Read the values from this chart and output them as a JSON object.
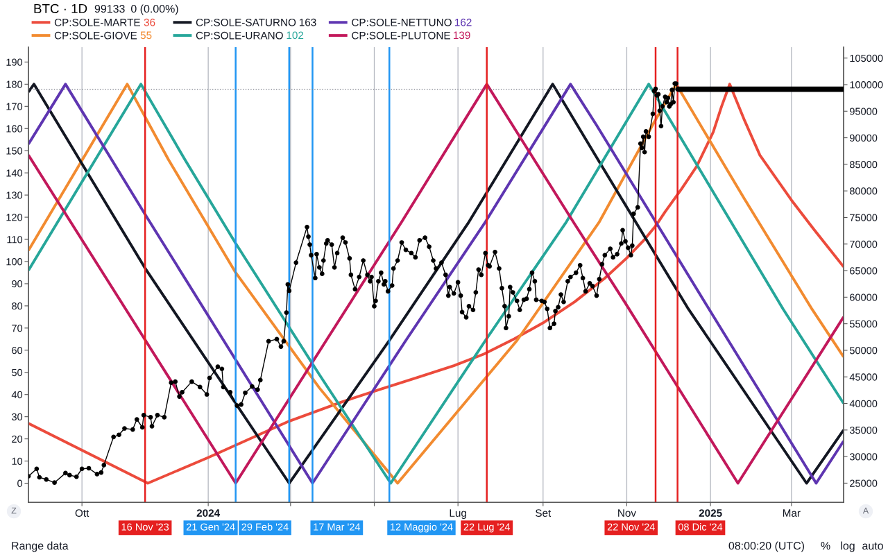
{
  "chart_data": {
    "type": "line",
    "legend": "top left",
    "grid": "x",
    "xlim": [
      "2023-08-23",
      "2025-04-08"
    ],
    "xticks": [
      {
        "value": "2023-10-01",
        "label": "Ott"
      },
      {
        "value": "2024-01-01",
        "label": "2024"
      },
      {
        "value": "2024-03-01",
        "label": null
      },
      {
        "value": "2024-05-01",
        "label": null
      },
      {
        "value": "2024-07-01",
        "label": "Lug"
      },
      {
        "value": "2024-09-01",
        "label": "Set"
      },
      {
        "value": "2024-11-01",
        "label": "Nov"
      },
      {
        "value": "2025-01-01",
        "label": "2025"
      },
      {
        "value": "2025-03-01",
        "label": "Mar"
      }
    ],
    "ylim": [
      -8.6,
      196.7
    ],
    "yticks": [
      0,
      10,
      20,
      30,
      40,
      50,
      60,
      70,
      80,
      90,
      100,
      110,
      120,
      130,
      140,
      150,
      160,
      170,
      180,
      190
    ],
    "y2lim": [
      21400,
      107050
    ],
    "y2ticks": [
      25000,
      30000,
      35000,
      40000,
      45000,
      50000,
      55000,
      60000,
      65000,
      70000,
      75000,
      80000,
      85000,
      90000,
      95000,
      100000,
      105000
    ],
    "series": [
      {
        "name": "CP:SOLE-MARTE",
        "color": "#ec4b3c",
        "x": [
          "2023-08-23",
          "2023-11-18",
          "2024-01-01",
          "2024-02-29",
          "2024-04-07",
          "2024-05-05",
          "2024-06-01",
          "2024-06-28",
          "2024-07-20",
          "2024-08-11",
          "2024-09-02",
          "2024-09-24",
          "2024-10-16",
          "2024-11-01",
          "2024-11-14",
          "2024-11-22",
          "2024-11-29",
          "2024-12-11",
          "2024-12-22",
          "2025-01-03",
          "2025-01-09",
          "2025-01-15",
          "2025-01-26",
          "2025-02-06",
          "2025-03-01",
          "2025-03-17",
          "2025-04-08"
        ],
        "values": [
          27,
          0,
          11.6,
          28,
          36.6,
          42.3,
          47.6,
          53,
          58.3,
          65.1,
          72.7,
          81.8,
          92.5,
          101.6,
          110,
          116,
          122.5,
          132.8,
          143,
          158.4,
          169.8,
          180,
          163.4,
          148,
          127.7,
          114.8,
          97.6
        ]
      },
      {
        "name": "CP:SOLE-GIOVE",
        "color": "#f28b30",
        "x": [
          "2023-08-23",
          "2023-11-03",
          "2023-12-03",
          "2024-01-21",
          "2024-03-22",
          "2024-05-18",
          "2024-08-13",
          "2024-10-12",
          "2024-11-21",
          "2024-12-07",
          "2025-01-25",
          "2025-03-16",
          "2025-04-08"
        ],
        "values": [
          105,
          180,
          146,
          95,
          43,
          0,
          64.4,
          117.9,
          162.9,
          180,
          129,
          78.5,
          57
        ]
      },
      {
        "name": "CP:SOLE-SATURNO",
        "color": "#131722",
        "x": [
          "2023-08-23",
          "2023-08-27",
          "2023-11-16",
          "2024-02-29",
          "2024-05-12",
          "2024-07-09",
          "2024-09-08",
          "2024-10-10",
          "2024-12-16",
          "2025-03-12",
          "2025-04-08"
        ],
        "values": [
          176.5,
          180,
          97,
          0,
          64.4,
          117.9,
          180,
          147,
          78.5,
          0,
          24
        ]
      },
      {
        "name": "CP:SOLE-URANO",
        "color": "#26a69a",
        "x": [
          "2023-08-23",
          "2023-11-13",
          "2023-12-15",
          "2024-01-21",
          "2024-03-22",
          "2024-05-13",
          "2024-07-21",
          "2024-09-18",
          "2024-11-17",
          "2025-02-23",
          "2025-04-08"
        ],
        "values": [
          96,
          180,
          146,
          108.2,
          49,
          0,
          64.4,
          117.9,
          180,
          78.5,
          36
        ]
      },
      {
        "name": "CP:SOLE-NETTUNO",
        "color": "#5e35b1",
        "x": [
          "2023-08-23",
          "2023-09-19",
          "2023-11-16",
          "2024-03-17",
          "2024-05-24",
          "2024-07-21",
          "2024-09-21",
          "2024-10-10",
          "2024-12-31",
          "2025-03-19",
          "2025-04-08"
        ],
        "values": [
          153,
          180,
          121.3,
          0,
          64.4,
          117.9,
          180,
          161.5,
          78.5,
          0,
          19
        ]
      },
      {
        "name": "CP:SOLE-PLUTONE",
        "color": "#c2185b",
        "x": [
          "2023-08-23",
          "2024-01-21",
          "2024-03-27",
          "2024-05-21",
          "2024-07-22",
          "2024-09-23",
          "2024-10-30",
          "2025-01-21",
          "2025-04-08"
        ],
        "values": [
          148,
          0,
          64.4,
          117.9,
          180,
          117.9,
          82.2,
          0,
          75
        ]
      },
      {
        "name": "BTC · 1D",
        "color": "#000000",
        "axis": "y2",
        "marker": "circle",
        "x": [
          "2023-08-23",
          "2023-08-29",
          "2023-08-31",
          "2023-09-05",
          "2023-09-11",
          "2023-09-19",
          "2023-09-22",
          "2023-09-27",
          "2023-10-01",
          "2023-10-06",
          "2023-10-12",
          "2023-10-15",
          "2023-10-17",
          "2023-10-24",
          "2023-10-28",
          "2023-11-01",
          "2023-11-07",
          "2023-11-10",
          "2023-11-14",
          "2023-11-15",
          "2023-11-20",
          "2023-11-21",
          "2023-11-25",
          "2023-11-30",
          "2023-12-05",
          "2023-12-08",
          "2023-12-11",
          "2023-12-13",
          "2023-12-20",
          "2023-12-26",
          "2023-12-31",
          "2024-01-02",
          "2024-01-08",
          "2024-01-11",
          "2024-01-12",
          "2024-01-17",
          "2024-01-22",
          "2024-01-25",
          "2024-01-28",
          "2024-02-02",
          "2024-02-06",
          "2024-02-08",
          "2024-02-14",
          "2024-02-20",
          "2024-02-23",
          "2024-02-25",
          "2024-02-27",
          "2024-02-28",
          "2024-02-29",
          "2024-03-05",
          "2024-03-13",
          "2024-03-14",
          "2024-03-15",
          "2024-03-16",
          "2024-03-19",
          "2024-03-20",
          "2024-03-22",
          "2024-03-24",
          "2024-03-25",
          "2024-03-27",
          "2024-03-28",
          "2024-03-31",
          "2024-04-02",
          "2024-04-04",
          "2024-04-08",
          "2024-04-10",
          "2024-04-13",
          "2024-04-14",
          "2024-04-17",
          "2024-04-20",
          "2024-04-23",
          "2024-04-26",
          "2024-04-28",
          "2024-04-29",
          "2024-05-01",
          "2024-05-02",
          "2024-05-04",
          "2024-05-06",
          "2024-05-08",
          "2024-05-09",
          "2024-05-11",
          "2024-05-14",
          "2024-05-15",
          "2024-05-18",
          "2024-05-21",
          "2024-05-24",
          "2024-05-28",
          "2024-05-31",
          "2024-06-03",
          "2024-06-07",
          "2024-06-10",
          "2024-06-13",
          "2024-06-15",
          "2024-06-19",
          "2024-06-22",
          "2024-06-24",
          "2024-06-25",
          "2024-06-28",
          "2024-07-01",
          "2024-07-03",
          "2024-07-04",
          "2024-07-07",
          "2024-07-09",
          "2024-07-12",
          "2024-07-14",
          "2024-07-16",
          "2024-07-18",
          "2024-07-21",
          "2024-07-23",
          "2024-07-24",
          "2024-07-28",
          "2024-07-31",
          "2024-08-02",
          "2024-08-04",
          "2024-08-05",
          "2024-08-07",
          "2024-08-08",
          "2024-08-10",
          "2024-08-13",
          "2024-08-15",
          "2024-08-18",
          "2024-08-20",
          "2024-08-22",
          "2024-08-24",
          "2024-08-26",
          "2024-08-27",
          "2024-08-31",
          "2024-09-02",
          "2024-09-04",
          "2024-09-06",
          "2024-09-09",
          "2024-09-10",
          "2024-09-12",
          "2024-09-14",
          "2024-09-16",
          "2024-09-19",
          "2024-09-21",
          "2024-09-25",
          "2024-09-28",
          "2024-09-30",
          "2024-10-02",
          "2024-10-05",
          "2024-10-07",
          "2024-10-10",
          "2024-10-12",
          "2024-10-14",
          "2024-10-16",
          "2024-10-20",
          "2024-10-22",
          "2024-10-25",
          "2024-10-28",
          "2024-10-29",
          "2024-10-31",
          "2024-11-02",
          "2024-11-04",
          "2024-11-05",
          "2024-11-06",
          "2024-11-09",
          "2024-11-11",
          "2024-11-12",
          "2024-11-13",
          "2024-11-14",
          "2024-11-15",
          "2024-11-17",
          "2024-11-20",
          "2024-11-21",
          "2024-11-22",
          "2024-11-23",
          "2024-11-24",
          "2024-11-25",
          "2024-11-26",
          "2024-11-27",
          "2024-11-29",
          "2024-11-30",
          "2024-12-01",
          "2024-12-02",
          "2024-12-03",
          "2024-12-04",
          "2024-12-05",
          "2024-12-06",
          "2024-12-07",
          "2024-12-08"
        ],
        "values": [
          26300,
          27700,
          26100,
          25700,
          25100,
          26900,
          26500,
          26200,
          27700,
          27800,
          26700,
          27000,
          28400,
          33700,
          34100,
          35300,
          35100,
          37000,
          35500,
          37800,
          37400,
          35700,
          37800,
          37400,
          43900,
          44100,
          41300,
          42100,
          44100,
          43100,
          41700,
          44800,
          46900,
          46500,
          43100,
          42100,
          39600,
          39800,
          42000,
          43200,
          42600,
          44400,
          51700,
          52100,
          50700,
          51700,
          57100,
          62400,
          61200,
          66500,
          73200,
          71400,
          69900,
          67900,
          63600,
          68100,
          65600,
          64400,
          66900,
          70100,
          70700,
          69900,
          65600,
          68300,
          71200,
          70300,
          67300,
          64200,
          61500,
          63800,
          66900,
          64200,
          63000,
          63800,
          58300,
          59300,
          63000,
          64600,
          62400,
          63000,
          61100,
          62200,
          65400,
          66900,
          70300,
          68900,
          68300,
          67500,
          70700,
          71200,
          69500,
          66900,
          65400,
          66500,
          64200,
          60300,
          61900,
          60700,
          62800,
          60300,
          57200,
          56200,
          58300,
          57600,
          60900,
          65200,
          64200,
          68300,
          66000,
          65800,
          68500,
          65400,
          61700,
          58300,
          54200,
          56400,
          61900,
          60900,
          59300,
          57600,
          59500,
          59700,
          61500,
          64600,
          63000,
          59500,
          59300,
          59100,
          57800,
          54200,
          55000,
          57400,
          58100,
          60500,
          59100,
          63000,
          63800,
          64600,
          66000,
          63600,
          61100,
          62600,
          62100,
          60300,
          63400,
          66200,
          67900,
          69100,
          67500,
          68100,
          70100,
          72600,
          70500,
          69300,
          67900,
          69700,
          75700,
          76900,
          88900,
          88100,
          90200,
          87300,
          91200,
          90200,
          94500,
          98800,
          99200,
          98000,
          98200,
          95100,
          92200,
          95900,
          97700,
          96700,
          97500,
          95900,
          96300,
          99000,
          96700,
          100200,
          100200,
          99133
        ]
      },
      {
        "color": "#000000",
        "axis": "y2",
        "x": [
          "2024-12-08",
          "2025-04-08"
        ],
        "values": [
          99133,
          99133
        ]
      }
    ],
    "ref_lines": [
      {
        "axis": "x",
        "value": "2023-11-16",
        "label": "16 Nov '23",
        "color": "#e52020"
      },
      {
        "axis": "x",
        "value": "2024-01-21",
        "label": "21 Gen '24",
        "color": "#2196f3"
      },
      {
        "axis": "x",
        "value": "2024-02-29",
        "label": "29 Feb '24",
        "color": "#2196f3"
      },
      {
        "axis": "x",
        "value": "2024-03-17",
        "label": "17 Mar '24",
        "color": "#2196f3"
      },
      {
        "axis": "x",
        "value": "2024-05-12",
        "label": "12 Maggio '24",
        "color": "#2196f3"
      },
      {
        "axis": "x",
        "value": "2024-07-22",
        "label": "22 Lug '24",
        "color": "#e52020"
      },
      {
        "axis": "x",
        "value": "2024-11-22",
        "label": "22 Nov '24",
        "color": "#e52020"
      },
      {
        "axis": "x",
        "value": "2024-12-08",
        "label": "08 Dic '24",
        "color": "#e52020"
      },
      {
        "axis": "y2",
        "value": 99133,
        "label": null,
        "color": "#787b86",
        "line_style": "dotted"
      }
    ],
    "annotations": [
      "99133",
      "0 (0.00%)",
      "36",
      "55",
      "163",
      "102",
      "162",
      "139",
      "Z",
      "A",
      "Range data",
      "08:00:20 (UTC)",
      "%",
      "log",
      "auto"
    ]
  }
}
